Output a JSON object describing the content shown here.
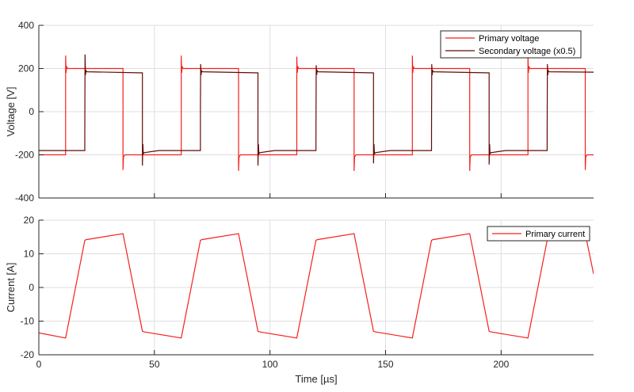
{
  "chart_data": [
    {
      "type": "line",
      "ylabel": "Voltage [V]",
      "xlabel": "",
      "xlim": [
        0,
        240
      ],
      "ylim": [
        -400,
        400
      ],
      "xticks": [
        0,
        50,
        100,
        150,
        200
      ],
      "yticks": [
        -400,
        -200,
        0,
        200,
        400
      ],
      "ytick_labels": [
        "-400",
        "-200",
        "0",
        "200",
        "400"
      ],
      "grid": true,
      "legend_placement": "top-right",
      "series": [
        {
          "name": "Primary voltage",
          "color": "#f5201e",
          "x": [
            0,
            11.6,
            11.6,
            11.8,
            12.0,
            12.4,
            36.4,
            36.4,
            36.6,
            37.2,
            61.6,
            61.6,
            61.8,
            62.0,
            62.4,
            86.4,
            86.4,
            86.6,
            87.2,
            111.6,
            111.6,
            111.8,
            112.0,
            112.4,
            136.4,
            136.4,
            136.6,
            137.2,
            161.6,
            161.6,
            161.8,
            162.0,
            162.4,
            186.4,
            186.4,
            186.6,
            187.2,
            211.6,
            211.6,
            211.8,
            212.0,
            212.4,
            236.4,
            236.4,
            236.6,
            237.2,
            240
          ],
          "y": [
            -200,
            -200,
            260,
            180,
            210,
            200,
            200,
            -270,
            -210,
            -200,
            -200,
            260,
            180,
            210,
            200,
            200,
            -275,
            -210,
            -200,
            -200,
            255,
            180,
            210,
            200,
            200,
            -275,
            -210,
            -200,
            -200,
            260,
            180,
            210,
            200,
            200,
            -275,
            -210,
            -200,
            -200,
            255,
            180,
            210,
            200,
            200,
            -270,
            -210,
            -200,
            -200
          ]
        },
        {
          "name": "Secondary voltage (x0.5)",
          "color": "#650a06",
          "x": [
            0,
            19.9,
            19.9,
            20.0,
            20.2,
            20.4,
            20.8,
            44.8,
            44.8,
            45.0,
            45.2,
            45.6,
            50,
            52,
            69.9,
            69.9,
            70.0,
            70.2,
            70.4,
            70.8,
            94.8,
            94.8,
            95.0,
            95.2,
            95.6,
            100,
            102,
            119.9,
            119.9,
            120.0,
            120.2,
            120.4,
            120.8,
            144.8,
            144.8,
            145.0,
            145.2,
            145.6,
            150,
            152,
            169.9,
            169.9,
            170.0,
            170.2,
            170.4,
            170.8,
            194.8,
            194.8,
            195.0,
            195.2,
            195.6,
            200,
            202,
            219.9,
            219.9,
            220.0,
            220.2,
            220.4,
            220.8,
            240
          ],
          "y": [
            -180,
            -180,
            -100,
            265,
            170,
            190,
            185,
            180,
            -250,
            -150,
            -195,
            -190,
            -183,
            -180,
            -180,
            10,
            220,
            170,
            190,
            185,
            180,
            -250,
            -150,
            -195,
            -190,
            -183,
            -180,
            -180,
            -100,
            215,
            170,
            190,
            185,
            180,
            -240,
            -150,
            -195,
            -190,
            -183,
            -180,
            -180,
            -100,
            220,
            170,
            190,
            185,
            180,
            -245,
            -150,
            -195,
            -190,
            -183,
            -180,
            -180,
            -100,
            220,
            170,
            190,
            185,
            183
          ]
        }
      ]
    },
    {
      "type": "line",
      "ylabel": "Current [A]",
      "xlabel": "Time [µs]",
      "xlim": [
        0,
        240
      ],
      "ylim": [
        -20,
        20
      ],
      "xticks": [
        0,
        50,
        100,
        150,
        200
      ],
      "xtick_labels": [
        "0",
        "50",
        "100",
        "150",
        "200"
      ],
      "yticks": [
        -20,
        -10,
        0,
        10,
        20
      ],
      "ytick_labels": [
        "-20",
        "-10",
        "0",
        "10",
        "20"
      ],
      "grid": true,
      "legend_placement": "top-right",
      "series": [
        {
          "name": "Primary current",
          "color": "#f5201e",
          "x": [
            0,
            11.6,
            19.9,
            20.5,
            36.4,
            44.8,
            45.5,
            61.6,
            69.9,
            70.5,
            86.4,
            94.8,
            95.5,
            111.6,
            119.9,
            120.5,
            136.4,
            144.8,
            145.5,
            161.6,
            169.9,
            170.5,
            186.4,
            194.8,
            195.5,
            211.6,
            219.9,
            220.5,
            236.4,
            240
          ],
          "y": [
            -13.5,
            -15,
            14,
            14.2,
            16,
            -13,
            -13.2,
            -15,
            14,
            14.2,
            16,
            -13,
            -13.2,
            -15,
            14,
            14.2,
            16,
            -13,
            -13.2,
            -15,
            14,
            14.2,
            16,
            -13,
            -13.2,
            -15,
            14,
            14.2,
            16,
            4
          ]
        }
      ]
    }
  ]
}
